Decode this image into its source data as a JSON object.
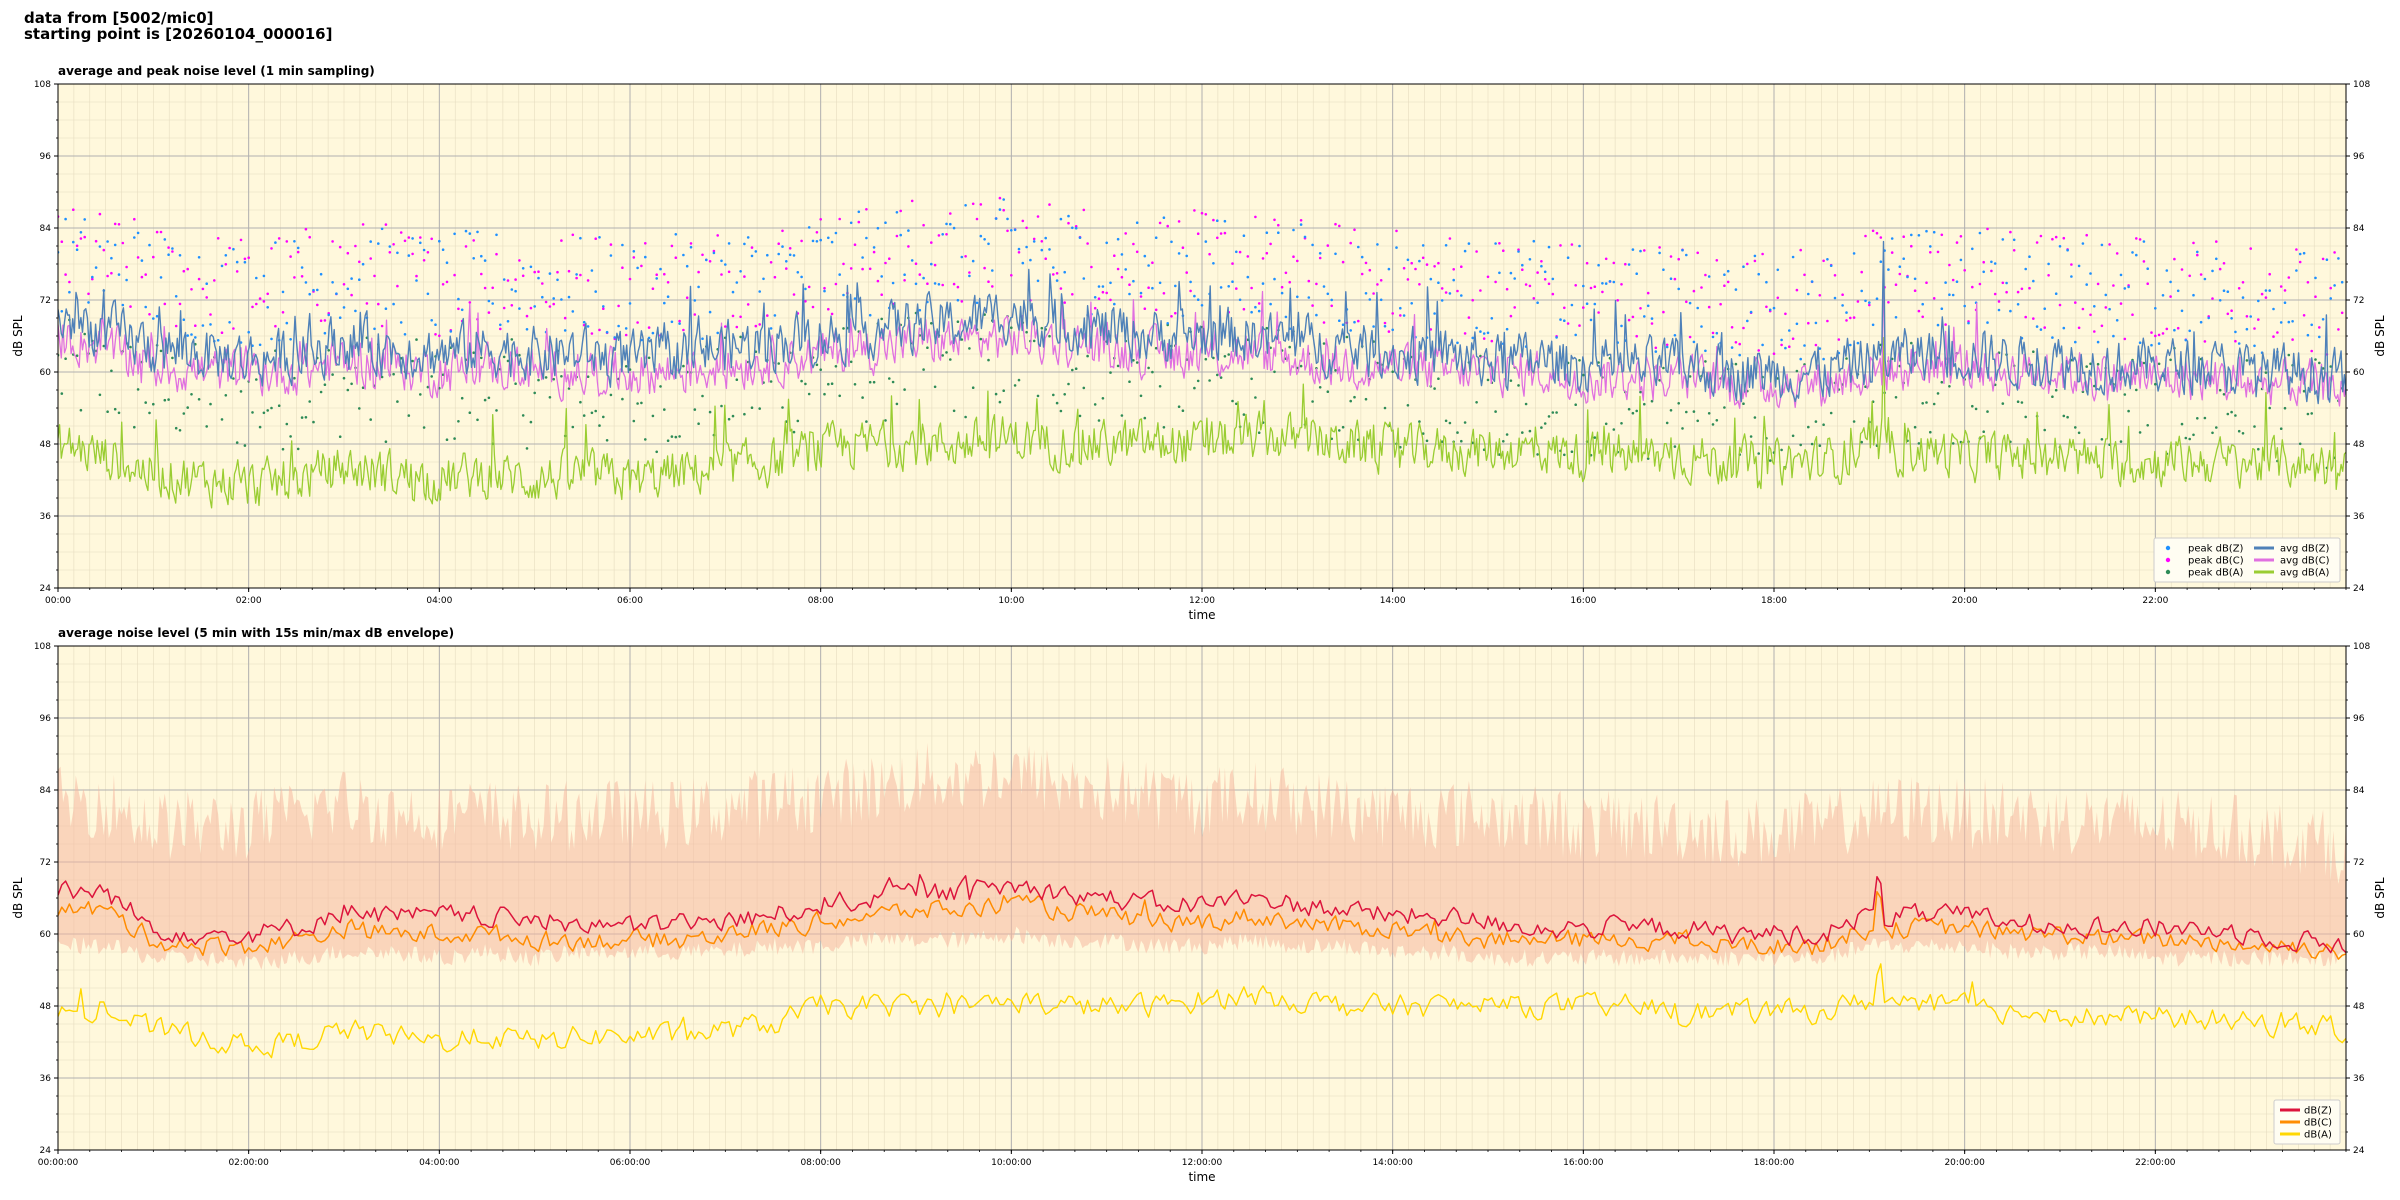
{
  "header": {
    "line1": "data from [5002/mic0]",
    "line2": "starting point is [20260104_000016]"
  },
  "colors": {
    "background": "#fff8dc",
    "dBZ_avg": "#4f81b8",
    "dBC_avg": "#e070e0",
    "dBA_avg": "#9acd32",
    "dBZ_peak": "#1e90ff",
    "dBC_peak": "#ff00ff",
    "dBA_peak": "#2e8b57",
    "dBZ_5min": "#dc143c",
    "dBC_5min": "#ff8c00",
    "dBA_5min": "#ffd700",
    "envelope": "#f5b8a0"
  },
  "chart_data": [
    {
      "type": "line",
      "title": "average and peak noise level (1 min sampling)",
      "xlabel": "time",
      "ylabel": "dB SPL",
      "ylim": [
        24,
        108
      ],
      "yticks": [
        "24",
        "36",
        "48",
        "60",
        "72",
        "84",
        "96",
        "108"
      ],
      "xlim": [
        "00:00",
        "24:00"
      ],
      "xticks": [
        "00:00",
        "02:00",
        "04:00",
        "06:00",
        "08:00",
        "10:00",
        "12:00",
        "14:00",
        "16:00",
        "18:00",
        "20:00",
        "22:00"
      ],
      "grid": true,
      "legend": "bottom-right",
      "legend_entries": [
        "peak dB(Z)",
        "peak dB(C)",
        "peak dB(A)",
        "avg dB(Z)",
        "avg dB(C)",
        "avg dB(A)"
      ],
      "series_shape": {
        "x_hours": [
          0,
          0.5,
          1,
          1.5,
          2,
          2.5,
          3,
          3.5,
          4,
          4.5,
          5,
          5.5,
          6,
          6.5,
          7,
          7.5,
          8,
          8.5,
          9,
          9.5,
          10,
          10.5,
          11,
          11.5,
          12,
          12.5,
          13,
          13.5,
          14,
          14.5,
          15,
          15.5,
          16,
          16.5,
          17,
          17.5,
          18,
          18.5,
          19,
          19.5,
          20,
          20.5,
          21,
          21.5,
          22,
          22.5,
          23,
          23.5,
          24
        ],
        "avg_dBZ": [
          69,
          67,
          64,
          63,
          62,
          63,
          65,
          64,
          63,
          64,
          63,
          63,
          62,
          63,
          64,
          65,
          66,
          67,
          68,
          68,
          70,
          68,
          67,
          66,
          66,
          66,
          65,
          64,
          63,
          63,
          62,
          62,
          61,
          61,
          61,
          60,
          60,
          60,
          62,
          63,
          63,
          62,
          62,
          61,
          61,
          61,
          60,
          60,
          59
        ],
        "avg_dBC": [
          66,
          64,
          61,
          60,
          60,
          60,
          62,
          61,
          60,
          61,
          60,
          60,
          60,
          60,
          61,
          62,
          63,
          64,
          65,
          65,
          66,
          65,
          64,
          63,
          63,
          63,
          62,
          61,
          61,
          60,
          60,
          60,
          59,
          59,
          59,
          58,
          58,
          58,
          60,
          61,
          61,
          60,
          60,
          59,
          59,
          59,
          58,
          58,
          57
        ],
        "avg_dBA": [
          48,
          46,
          43,
          42,
          41,
          42,
          44,
          43,
          42,
          43,
          42,
          43,
          42,
          43,
          44,
          45,
          47,
          48,
          48,
          48,
          49,
          48,
          48,
          48,
          48,
          49,
          49,
          48,
          47,
          47,
          47,
          47,
          46,
          46,
          46,
          45,
          45,
          45,
          47,
          47,
          46,
          46,
          46,
          45,
          45,
          45,
          45,
          45,
          43
        ],
        "peak_dBZ": [
          78,
          77,
          75,
          74,
          73,
          74,
          76,
          75,
          74,
          75,
          74,
          74,
          73,
          74,
          75,
          76,
          77,
          78,
          79,
          79,
          80,
          79,
          78,
          77,
          77,
          77,
          76,
          75,
          74,
          74,
          73,
          73,
          72,
          72,
          72,
          71,
          71,
          71,
          74,
          75,
          75,
          74,
          74,
          73,
          73,
          73,
          72,
          72,
          70
        ],
        "peak_dBC": [
          79,
          78,
          76,
          75,
          74,
          75,
          77,
          76,
          75,
          76,
          75,
          75,
          74,
          75,
          76,
          77,
          78,
          79,
          80,
          80,
          81,
          80,
          79,
          78,
          78,
          78,
          77,
          76,
          75,
          75,
          74,
          74,
          73,
          73,
          73,
          72,
          72,
          72,
          75,
          76,
          76,
          75,
          75,
          74,
          74,
          74,
          73,
          73,
          71
        ],
        "peak_dBA": [
          60,
          59,
          57,
          56,
          55,
          56,
          58,
          57,
          56,
          57,
          56,
          56,
          55,
          56,
          57,
          58,
          59,
          60,
          61,
          61,
          62,
          61,
          60,
          59,
          59,
          59,
          58,
          57,
          56,
          56,
          55,
          55,
          54,
          54,
          54,
          53,
          53,
          53,
          56,
          57,
          57,
          56,
          56,
          55,
          55,
          55,
          54,
          54,
          52
        ]
      }
    },
    {
      "type": "line",
      "title": "average noise level (5 min with 15s min/max dB envelope)",
      "xlabel": "time",
      "ylabel": "dB SPL",
      "ylim": [
        24,
        108
      ],
      "yticks": [
        "24",
        "36",
        "48",
        "60",
        "72",
        "84",
        "96",
        "108"
      ],
      "xlim": [
        "00:00:00",
        "24:00:00"
      ],
      "xticks": [
        "00:00:00",
        "02:00:00",
        "04:00:00",
        "06:00:00",
        "08:00:00",
        "10:00:00",
        "12:00:00",
        "14:00:00",
        "16:00:00",
        "18:00:00",
        "20:00:00",
        "22:00:00"
      ],
      "grid": true,
      "legend": "bottom-right",
      "legend_entries": [
        "dB(Z)",
        "dB(C)",
        "dB(A)"
      ],
      "series_shape": {
        "x_hours": [
          0,
          0.5,
          1,
          1.5,
          2,
          2.5,
          3,
          3.5,
          4,
          4.5,
          5,
          5.5,
          6,
          6.5,
          7,
          7.5,
          8,
          8.5,
          9,
          9.5,
          10,
          10.5,
          11,
          11.5,
          12,
          12.5,
          13,
          13.5,
          14,
          14.5,
          15,
          15.5,
          16,
          16.5,
          17,
          17.5,
          18,
          18.5,
          19,
          19.5,
          20,
          20.5,
          21,
          21.5,
          22,
          22.5,
          23,
          23.5,
          24
        ],
        "dBZ": [
          67,
          67,
          61,
          60,
          60,
          61,
          64,
          63,
          63,
          63,
          62,
          62,
          61,
          62,
          62,
          63,
          65,
          66,
          67,
          67,
          68,
          67,
          66,
          65,
          65,
          66,
          65,
          64,
          63,
          63,
          62,
          61,
          61,
          61,
          61,
          60,
          60,
          60,
          63,
          63,
          63,
          62,
          62,
          61,
          61,
          61,
          60,
          59,
          58
        ],
        "dBC": [
          64,
          64,
          59,
          58,
          58,
          59,
          61,
          60,
          60,
          60,
          59,
          59,
          59,
          59,
          60,
          61,
          62,
          63,
          64,
          64,
          65,
          64,
          63,
          62,
          62,
          63,
          62,
          61,
          61,
          60,
          59,
          59,
          59,
          59,
          59,
          58,
          58,
          58,
          61,
          61,
          61,
          60,
          60,
          59,
          59,
          59,
          58,
          58,
          57
        ],
        "dBA": [
          47,
          47,
          44,
          43,
          41,
          42,
          44,
          43,
          42,
          43,
          42,
          43,
          43,
          43,
          44,
          45,
          48,
          48,
          48,
          48,
          49,
          48,
          48,
          48,
          49,
          50,
          49,
          48,
          48,
          48,
          48,
          48,
          48,
          48,
          47,
          47,
          47,
          47,
          49,
          48,
          48,
          47,
          47,
          46,
          46,
          46,
          45,
          45,
          44
        ],
        "envelope_max": [
          82,
          82,
          78,
          78,
          78,
          80,
          82,
          80,
          80,
          80,
          79,
          80,
          80,
          80,
          81,
          82,
          83,
          84,
          86,
          86,
          87,
          85,
          84,
          83,
          82,
          83,
          82,
          81,
          80,
          80,
          80,
          79,
          78,
          78,
          78,
          77,
          77,
          78,
          80,
          81,
          80,
          80,
          79,
          79,
          78,
          78,
          77,
          76,
          74
        ],
        "envelope_min": [
          58,
          58,
          56,
          56,
          55,
          56,
          57,
          57,
          56,
          57,
          56,
          57,
          57,
          57,
          57,
          58,
          58,
          59,
          59,
          59,
          60,
          59,
          59,
          58,
          58,
          59,
          58,
          58,
          57,
          57,
          56,
          56,
          56,
          56,
          56,
          56,
          56,
          56,
          58,
          58,
          58,
          57,
          57,
          57,
          56,
          56,
          56,
          56,
          56
        ]
      }
    }
  ]
}
